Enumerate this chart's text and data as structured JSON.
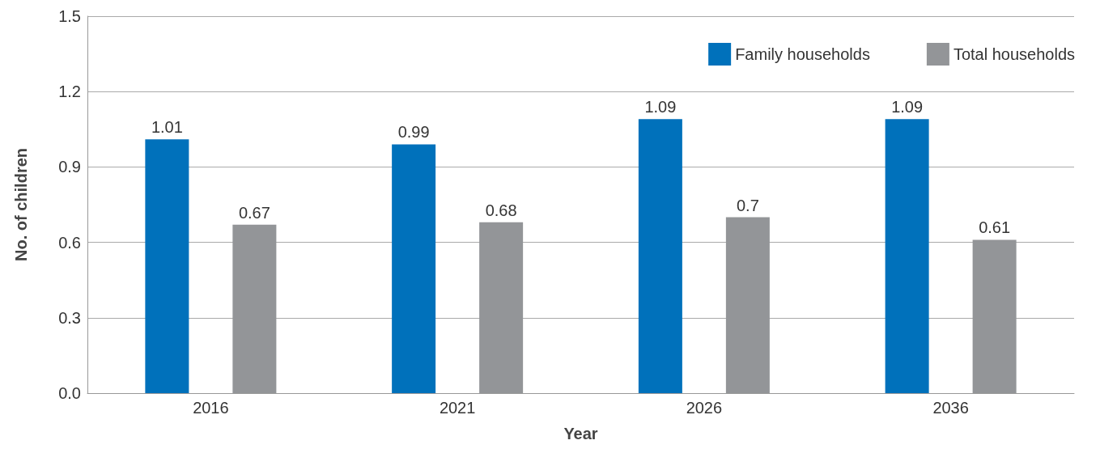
{
  "chart_data": {
    "type": "bar",
    "xlabel": "Year",
    "ylabel": "No. of children",
    "categories": [
      "2016",
      "2021",
      "2026",
      "2036"
    ],
    "series": [
      {
        "name": "Family households",
        "color": "#0071bb",
        "values": [
          1.01,
          0.99,
          1.09,
          1.09
        ]
      },
      {
        "name": "Total households",
        "color": "#939598",
        "values": [
          0.67,
          0.68,
          0.7,
          0.61
        ]
      }
    ],
    "ylim": [
      0,
      1.5
    ],
    "yticks": [
      {
        "value": 0,
        "label": "0.0"
      },
      0.3,
      0.6,
      0.9,
      1.2,
      1.5
    ],
    "grid": "y",
    "legend": "top right",
    "data_labels": true
  }
}
